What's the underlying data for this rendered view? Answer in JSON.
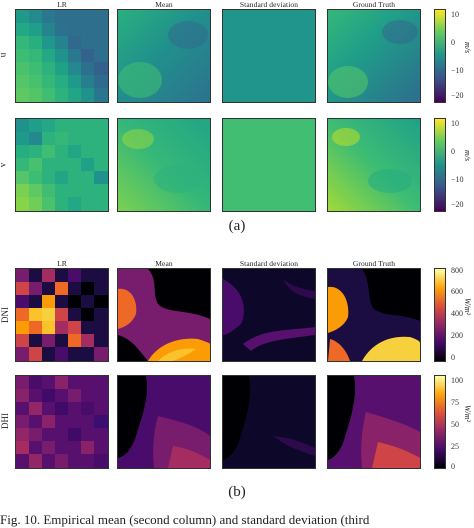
{
  "figure_a": {
    "column_titles": [
      "LR",
      "Mean",
      "Standard deviation",
      "Ground Truth"
    ],
    "rows": [
      {
        "label": "u",
        "unit": "m/s",
        "colorbar_ticks": [
          "10",
          "0",
          "−10",
          "−20"
        ]
      },
      {
        "label": "v",
        "unit": "m/s",
        "colorbar_ticks": [
          "10",
          "0",
          "−10",
          "−20"
        ]
      }
    ],
    "label": "(a)",
    "colormap": "viridis"
  },
  "figure_b": {
    "column_titles": [
      "LR",
      "Mean",
      "Standard deviation",
      "Ground Truth"
    ],
    "rows": [
      {
        "label": "DNI",
        "unit": "W/m²",
        "colorbar_ticks": [
          "800",
          "600",
          "400",
          "200",
          "0"
        ]
      },
      {
        "label": "DHI",
        "unit": "W/m²",
        "colorbar_ticks": [
          "100",
          "75",
          "50",
          "25",
          "0"
        ]
      }
    ],
    "label": "(b)",
    "colormap": "inferno"
  },
  "caption": "Fig. 10.  Empirical mean (second column) and standard deviation (third"
}
